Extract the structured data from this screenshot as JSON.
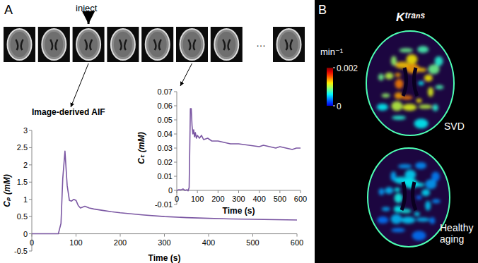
{
  "chart_data": [
    {
      "type": "line",
      "title": "Image-derived AIF",
      "x_label": "Time (s)",
      "y_label": "Cₚ (mM)",
      "x": [
        0,
        60,
        66,
        70,
        75,
        80,
        85,
        90,
        95,
        100,
        105,
        110,
        120,
        130,
        140,
        160,
        180,
        200,
        250,
        300,
        350,
        400,
        450,
        500,
        550,
        600
      ],
      "values": [
        0,
        0,
        0.3,
        1.6,
        2.4,
        1.4,
        0.97,
        0.95,
        1.0,
        0.97,
        0.82,
        0.75,
        0.8,
        0.75,
        0.72,
        0.68,
        0.64,
        0.61,
        0.55,
        0.5,
        0.47,
        0.45,
        0.43,
        0.42,
        0.41,
        0.4
      ],
      "color": "#7b57a3",
      "xlim": [
        0,
        600
      ],
      "xticks": [
        0,
        100,
        200,
        300,
        400,
        500,
        600
      ],
      "ylim": [
        -0.5,
        3
      ],
      "yticks": [
        -0.5,
        0,
        0.5,
        1,
        1.5,
        2,
        2.5,
        3
      ],
      "grid": false
    },
    {
      "type": "line",
      "x_label": "Time (s)",
      "y_label": "Cₜ (mM)",
      "x": [
        0,
        10,
        20,
        30,
        40,
        50,
        55,
        60,
        63,
        66,
        70,
        74,
        78,
        82,
        86,
        90,
        95,
        100,
        110,
        120,
        130,
        150,
        170,
        200,
        230,
        260,
        300,
        350,
        400,
        420,
        450,
        480,
        500,
        530,
        560,
        580,
        600
      ],
      "values": [
        0,
        0.0005,
        0.0003,
        0.001,
        0,
        0.0005,
        -0.0003,
        0.002,
        0.03,
        0.058,
        0.058,
        0.046,
        0.04,
        0.043,
        0.038,
        0.041,
        0.037,
        0.039,
        0.037,
        0.039,
        0.036,
        0.037,
        0.035,
        0.035,
        0.034,
        0.033,
        0.033,
        0.032,
        0.031,
        0.032,
        0.031,
        0.03,
        0.031,
        0.03,
        0.029,
        0.03,
        0.03
      ],
      "color": "#7b57a3",
      "xlim": [
        0,
        600
      ],
      "xticks": [
        0,
        100,
        200,
        300,
        400,
        500,
        600
      ],
      "ylim": [
        -0.01,
        0.07
      ],
      "yticks": [
        -0.01,
        0,
        0.01,
        0.02,
        0.03,
        0.04,
        0.05,
        0.06,
        0.07
      ],
      "grid": false
    }
  ],
  "figure": {
    "panel_a": "A",
    "panel_b": "B",
    "inject": "inject",
    "ellipsis": "…",
    "ktrans": "Kᵗʳᵃⁿˢ",
    "colorbar": {
      "label": "min⁻¹",
      "range": [
        0,
        0.002
      ],
      "ticks": [
        0,
        0.002
      ]
    },
    "maps": [
      "SVD",
      "Healthy aging"
    ]
  }
}
